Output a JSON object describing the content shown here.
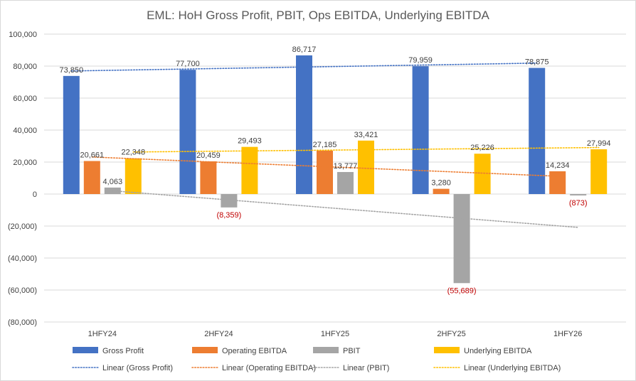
{
  "chart_data": {
    "type": "bar",
    "title": "EML: HoH Gross Profit, PBIT, Ops EBITDA, Underlying EBITDA",
    "categories": [
      "1HFY24",
      "2HFY24",
      "1HFY25",
      "2HFY25",
      "1HFY26"
    ],
    "ylim": [
      -80000,
      100000
    ],
    "yticks": [
      100000,
      80000,
      60000,
      40000,
      20000,
      0,
      -20000,
      -40000,
      -60000,
      -80000
    ],
    "ytick_labels": [
      "100,000",
      "80,000",
      "60,000",
      "40,000",
      "20,000",
      "0",
      "(20,000)",
      "(40,000)",
      "(60,000)",
      "(80,000)"
    ],
    "grid": true,
    "legend_position": "bottom",
    "series": [
      {
        "name": "Gross Profit",
        "color": "#4472c4",
        "values": [
          73850,
          77700,
          86717,
          79959,
          78875
        ],
        "labels": [
          "73,850",
          "77,700",
          "86,717",
          "79,959",
          "78,875"
        ]
      },
      {
        "name": "Operating EBITDA",
        "color": "#ed7d31",
        "values": [
          20661,
          20459,
          27185,
          3280,
          14234
        ],
        "labels": [
          "20,661",
          "20,459",
          "27,185",
          "3,280",
          "14,234"
        ]
      },
      {
        "name": "PBIT",
        "color": "#a5a5a5",
        "values": [
          4063,
          -8359,
          13777,
          -55689,
          -873
        ],
        "labels": [
          "4,063",
          "(8,359)",
          "13,777",
          "(55,689)",
          "(873)"
        ]
      },
      {
        "name": "Underlying EBITDA",
        "color": "#ffc000",
        "values": [
          22348,
          29493,
          33421,
          25226,
          27994
        ],
        "labels": [
          "22,348",
          "29,493",
          "33,421",
          "25,226",
          "27,994"
        ]
      }
    ],
    "trendlines": [
      {
        "name": "Linear (Gross Profit)",
        "series_index": 0,
        "color": "#4472c4",
        "type": "linear"
      },
      {
        "name": "Linear (Operating EBITDA)",
        "series_index": 1,
        "color": "#ed7d31",
        "type": "linear"
      },
      {
        "name": "Linear (PBIT)",
        "series_index": 2,
        "color": "#a5a5a5",
        "type": "linear"
      },
      {
        "name": "Linear (Underlying EBITDA)",
        "series_index": 3,
        "color": "#ffc000",
        "type": "linear"
      }
    ],
    "negative_label_color": "#c00000",
    "label_color": "#404040",
    "gridline_color": "#d9d9d9"
  }
}
